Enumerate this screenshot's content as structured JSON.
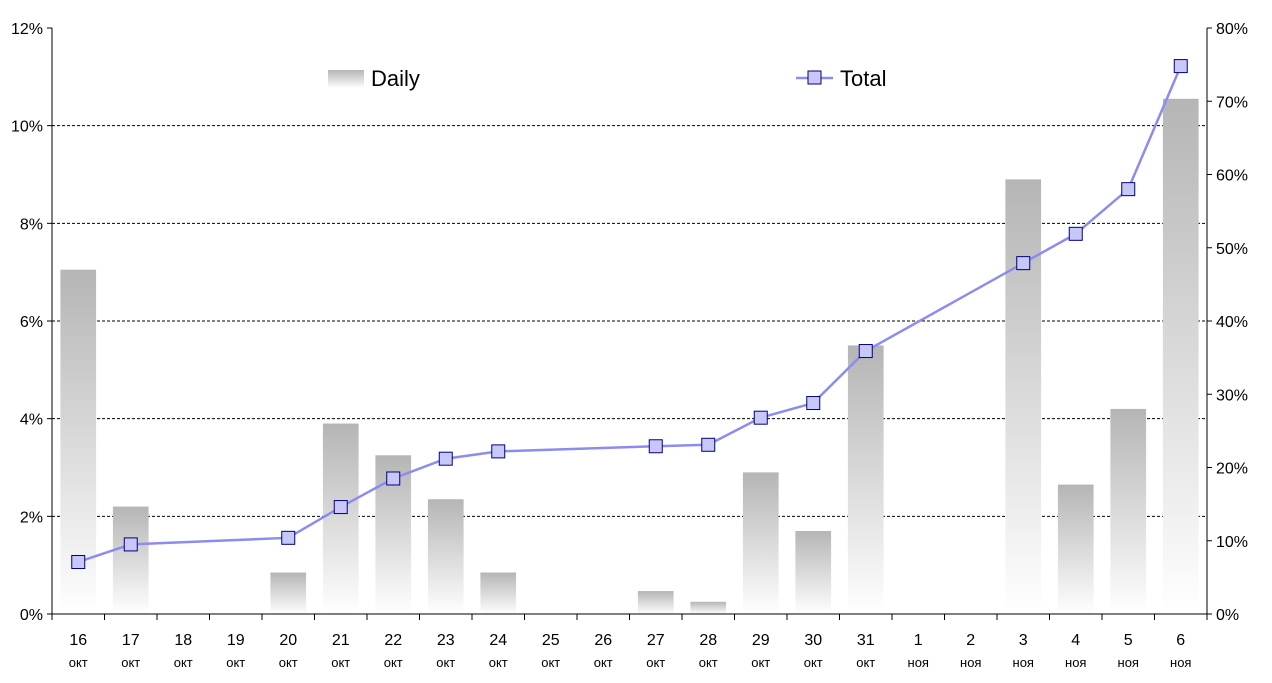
{
  "chart_data": {
    "type": "bar",
    "categories": [
      {
        "day": "16",
        "month": "окт"
      },
      {
        "day": "17",
        "month": "окт"
      },
      {
        "day": "18",
        "month": "окт"
      },
      {
        "day": "19",
        "month": "окт"
      },
      {
        "day": "20",
        "month": "окт"
      },
      {
        "day": "21",
        "month": "окт"
      },
      {
        "day": "22",
        "month": "окт"
      },
      {
        "day": "23",
        "month": "окт"
      },
      {
        "day": "24",
        "month": "окт"
      },
      {
        "day": "25",
        "month": "окт"
      },
      {
        "day": "26",
        "month": "окт"
      },
      {
        "day": "27",
        "month": "окт"
      },
      {
        "day": "28",
        "month": "окт"
      },
      {
        "day": "29",
        "month": "окт"
      },
      {
        "day": "30",
        "month": "окт"
      },
      {
        "day": "31",
        "month": "окт"
      },
      {
        "day": "1",
        "month": "ноя"
      },
      {
        "day": "2",
        "month": "ноя"
      },
      {
        "day": "3",
        "month": "ноя"
      },
      {
        "day": "4",
        "month": "ноя"
      },
      {
        "day": "5",
        "month": "ноя"
      },
      {
        "day": "6",
        "month": "ноя"
      }
    ],
    "series": [
      {
        "name": "Daily",
        "type": "bar",
        "axis": "left",
        "color": "#b8b8b8",
        "values": [
          7.05,
          2.2,
          0,
          0,
          0.85,
          3.9,
          3.25,
          2.35,
          0.85,
          0,
          0,
          0.47,
          0.25,
          2.9,
          1.7,
          5.5,
          0,
          0,
          8.9,
          2.65,
          4.2,
          10.55
        ]
      },
      {
        "name": "Total",
        "type": "line",
        "axis": "right",
        "color": "#8c8cf0",
        "marker_fill": "#c8c8f8",
        "values": [
          7.1,
          9.5,
          null,
          null,
          10.4,
          14.6,
          18.5,
          21.2,
          22.2,
          null,
          null,
          22.9,
          23.1,
          26.8,
          28.8,
          35.9,
          null,
          null,
          47.9,
          51.9,
          58.0,
          74.8
        ]
      }
    ],
    "left_axis": {
      "min": 0,
      "max": 12,
      "step": 2,
      "ticks": [
        "0%",
        "2%",
        "4%",
        "6%",
        "8%",
        "10%",
        "12%"
      ]
    },
    "right_axis": {
      "min": 0,
      "max": 80,
      "step": 10,
      "ticks": [
        "0%",
        "10%",
        "20%",
        "30%",
        "40%",
        "50%",
        "60%",
        "70%",
        "80%"
      ]
    },
    "grid": "horizontal-dashed",
    "legend": {
      "placement": "top",
      "items": [
        "Daily",
        "Total"
      ]
    }
  }
}
